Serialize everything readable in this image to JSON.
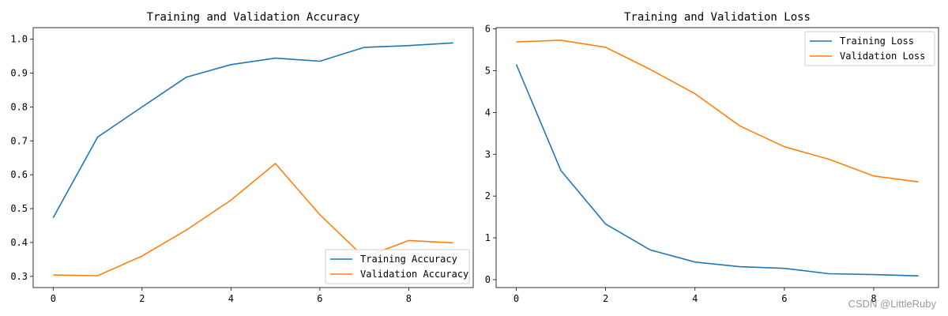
{
  "colors": {
    "series1": "#1f77b4",
    "series2": "#ff7f0e"
  },
  "watermark": "CSDN @LittleRuby",
  "chart_data": [
    {
      "type": "line",
      "title": "Training and Validation Accuracy",
      "xlabel": "",
      "ylabel": "",
      "x": [
        0,
        1,
        2,
        3,
        4,
        5,
        6,
        7,
        8,
        9
      ],
      "xticks": [
        0,
        2,
        4,
        6,
        8
      ],
      "xticklabels": [
        "0",
        "2",
        "4",
        "6",
        "8"
      ],
      "yticks": [
        0.3,
        0.4,
        0.5,
        0.6,
        0.7,
        0.8,
        0.9,
        1.0
      ],
      "yticklabels": [
        "0.3",
        "0.4",
        "0.5",
        "0.6",
        "0.7",
        "0.8",
        "0.9",
        "1.0"
      ],
      "xlim": [
        -0.45,
        9.45
      ],
      "ylim": [
        0.267,
        1.034
      ],
      "grid": false,
      "legend_position": "lower-right",
      "series": [
        {
          "name": "Training Accuracy",
          "values": [
            0.473,
            0.711,
            0.8,
            0.888,
            0.925,
            0.944,
            0.935,
            0.976,
            0.981,
            0.989
          ]
        },
        {
          "name": "Validation Accuracy",
          "values": [
            0.304,
            0.302,
            0.36,
            0.437,
            0.525,
            0.633,
            0.482,
            0.356,
            0.406,
            0.399
          ]
        }
      ]
    },
    {
      "type": "line",
      "title": "Training and Validation Loss",
      "xlabel": "",
      "ylabel": "",
      "x": [
        0,
        1,
        2,
        3,
        4,
        5,
        6,
        7,
        8,
        9
      ],
      "xticks": [
        0,
        2,
        4,
        6,
        8
      ],
      "xticklabels": [
        "0",
        "2",
        "4",
        "6",
        "8"
      ],
      "yticks": [
        0,
        1,
        2,
        3,
        4,
        5,
        6
      ],
      "yticklabels": [
        "0",
        "1",
        "2",
        "3",
        "4",
        "5",
        "6"
      ],
      "xlim": [
        -0.45,
        9.45
      ],
      "ylim": [
        -0.19,
        6.03
      ],
      "grid": false,
      "legend_position": "upper-right",
      "series": [
        {
          "name": "Training Loss",
          "values": [
            5.15,
            2.61,
            1.33,
            0.71,
            0.42,
            0.31,
            0.27,
            0.14,
            0.12,
            0.09
          ]
        },
        {
          "name": "Validation Loss",
          "values": [
            5.69,
            5.73,
            5.56,
            5.03,
            4.45,
            3.68,
            3.18,
            2.88,
            2.48,
            2.34
          ]
        }
      ]
    }
  ]
}
